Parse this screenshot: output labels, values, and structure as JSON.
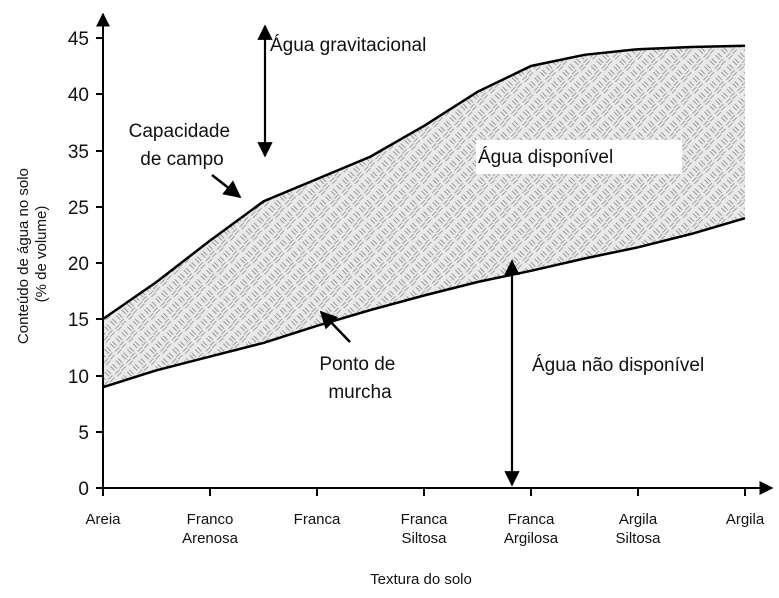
{
  "chart_data": {
    "type": "area",
    "title": "",
    "xlabel": "Textura do solo",
    "ylabel": [
      "Conteúdo de água no solo",
      "(% de volume)"
    ],
    "y_ticks": [
      0,
      5,
      10,
      15,
      20,
      25,
      35,
      40,
      45
    ],
    "categories": [
      [
        "Areia"
      ],
      [
        "Franco",
        "Arenosa"
      ],
      [
        "Franca"
      ],
      [
        "Franca",
        "Siltosa"
      ],
      [
        "Franca",
        "Argilosa"
      ],
      [
        "Argila",
        "Siltosa"
      ],
      [
        "Argila"
      ]
    ],
    "grid": false,
    "series": [
      {
        "name": "Capacidade de campo",
        "x": [
          0,
          0.5,
          1,
          1.5,
          2,
          2.5,
          3,
          3.5,
          4,
          4.5,
          5,
          5.5,
          6
        ],
        "values": [
          15,
          18.3,
          22,
          26,
          30,
          34,
          37.2,
          40.2,
          42.5,
          43.5,
          44,
          44.2,
          44.3
        ]
      },
      {
        "name": "Ponto de murcha",
        "x": [
          0,
          0.5,
          1,
          1.5,
          2,
          2.5,
          3,
          3.5,
          4,
          4.5,
          5,
          5.5,
          6
        ],
        "values": [
          9,
          10.5,
          11.7,
          12.9,
          14.4,
          15.8,
          17.1,
          18.3,
          19.3,
          20.4,
          21.4,
          22.6,
          24
        ]
      }
    ],
    "annotations": {
      "gravitacional": "Água gravitacional",
      "capacidade": [
        "Capacidade",
        "de campo"
      ],
      "disponivel": "Água disponível",
      "ponto": [
        "Ponto de",
        "murcha"
      ],
      "nao_disponivel": "Água não disponível"
    }
  }
}
